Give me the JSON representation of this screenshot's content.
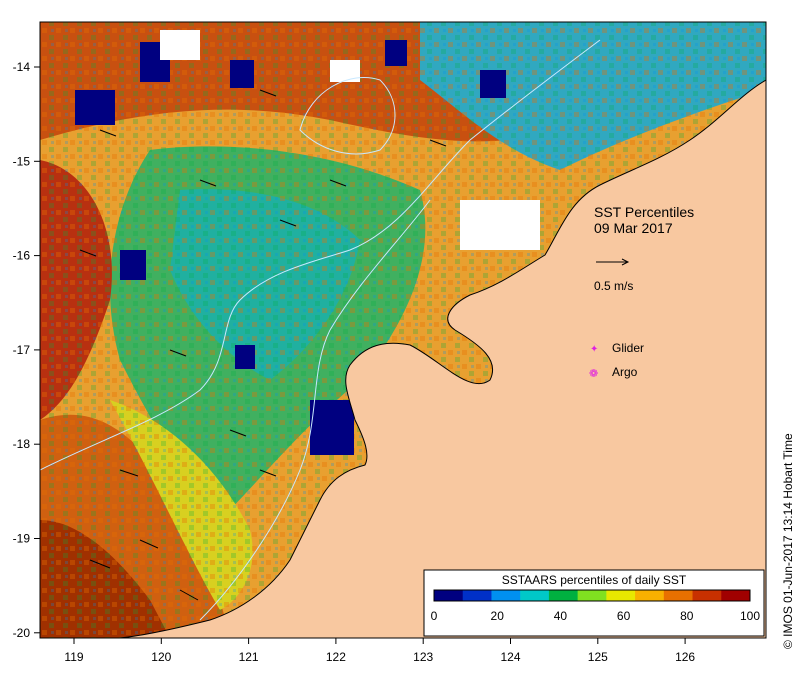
{
  "map": {
    "title_line1": "SST Percentiles",
    "title_line2": "09 Mar 2017",
    "scale_label": "0.5 m/s",
    "markers": [
      {
        "label": "Glider",
        "symbol": "✦",
        "color": "#e020e0"
      },
      {
        "label": "Argo",
        "symbol": "❁",
        "color": "#e020e0"
      }
    ],
    "x_ticks": [
      "119",
      "120",
      "121",
      "122",
      "123",
      "124",
      "125",
      "126"
    ],
    "y_ticks": [
      "-14",
      "-15",
      "-16",
      "-17",
      "-18",
      "-19",
      "-20"
    ],
    "credit": "© IMOS 01-Jun-2017 13:14 Hobart Time",
    "colors": {
      "land": "#f8c8a0",
      "coast": "#000000",
      "contour": "#c8e8ff"
    }
  },
  "legend": {
    "title": "SSTAARS percentiles of daily SST",
    "ticks": [
      "0",
      "20",
      "40",
      "60",
      "80",
      "100"
    ],
    "colors": [
      "#000080",
      "#0030c8",
      "#0090f0",
      "#00c8c8",
      "#00b040",
      "#80e020",
      "#e8e800",
      "#f8b000",
      "#e87000",
      "#c83000",
      "#a00000"
    ]
  }
}
